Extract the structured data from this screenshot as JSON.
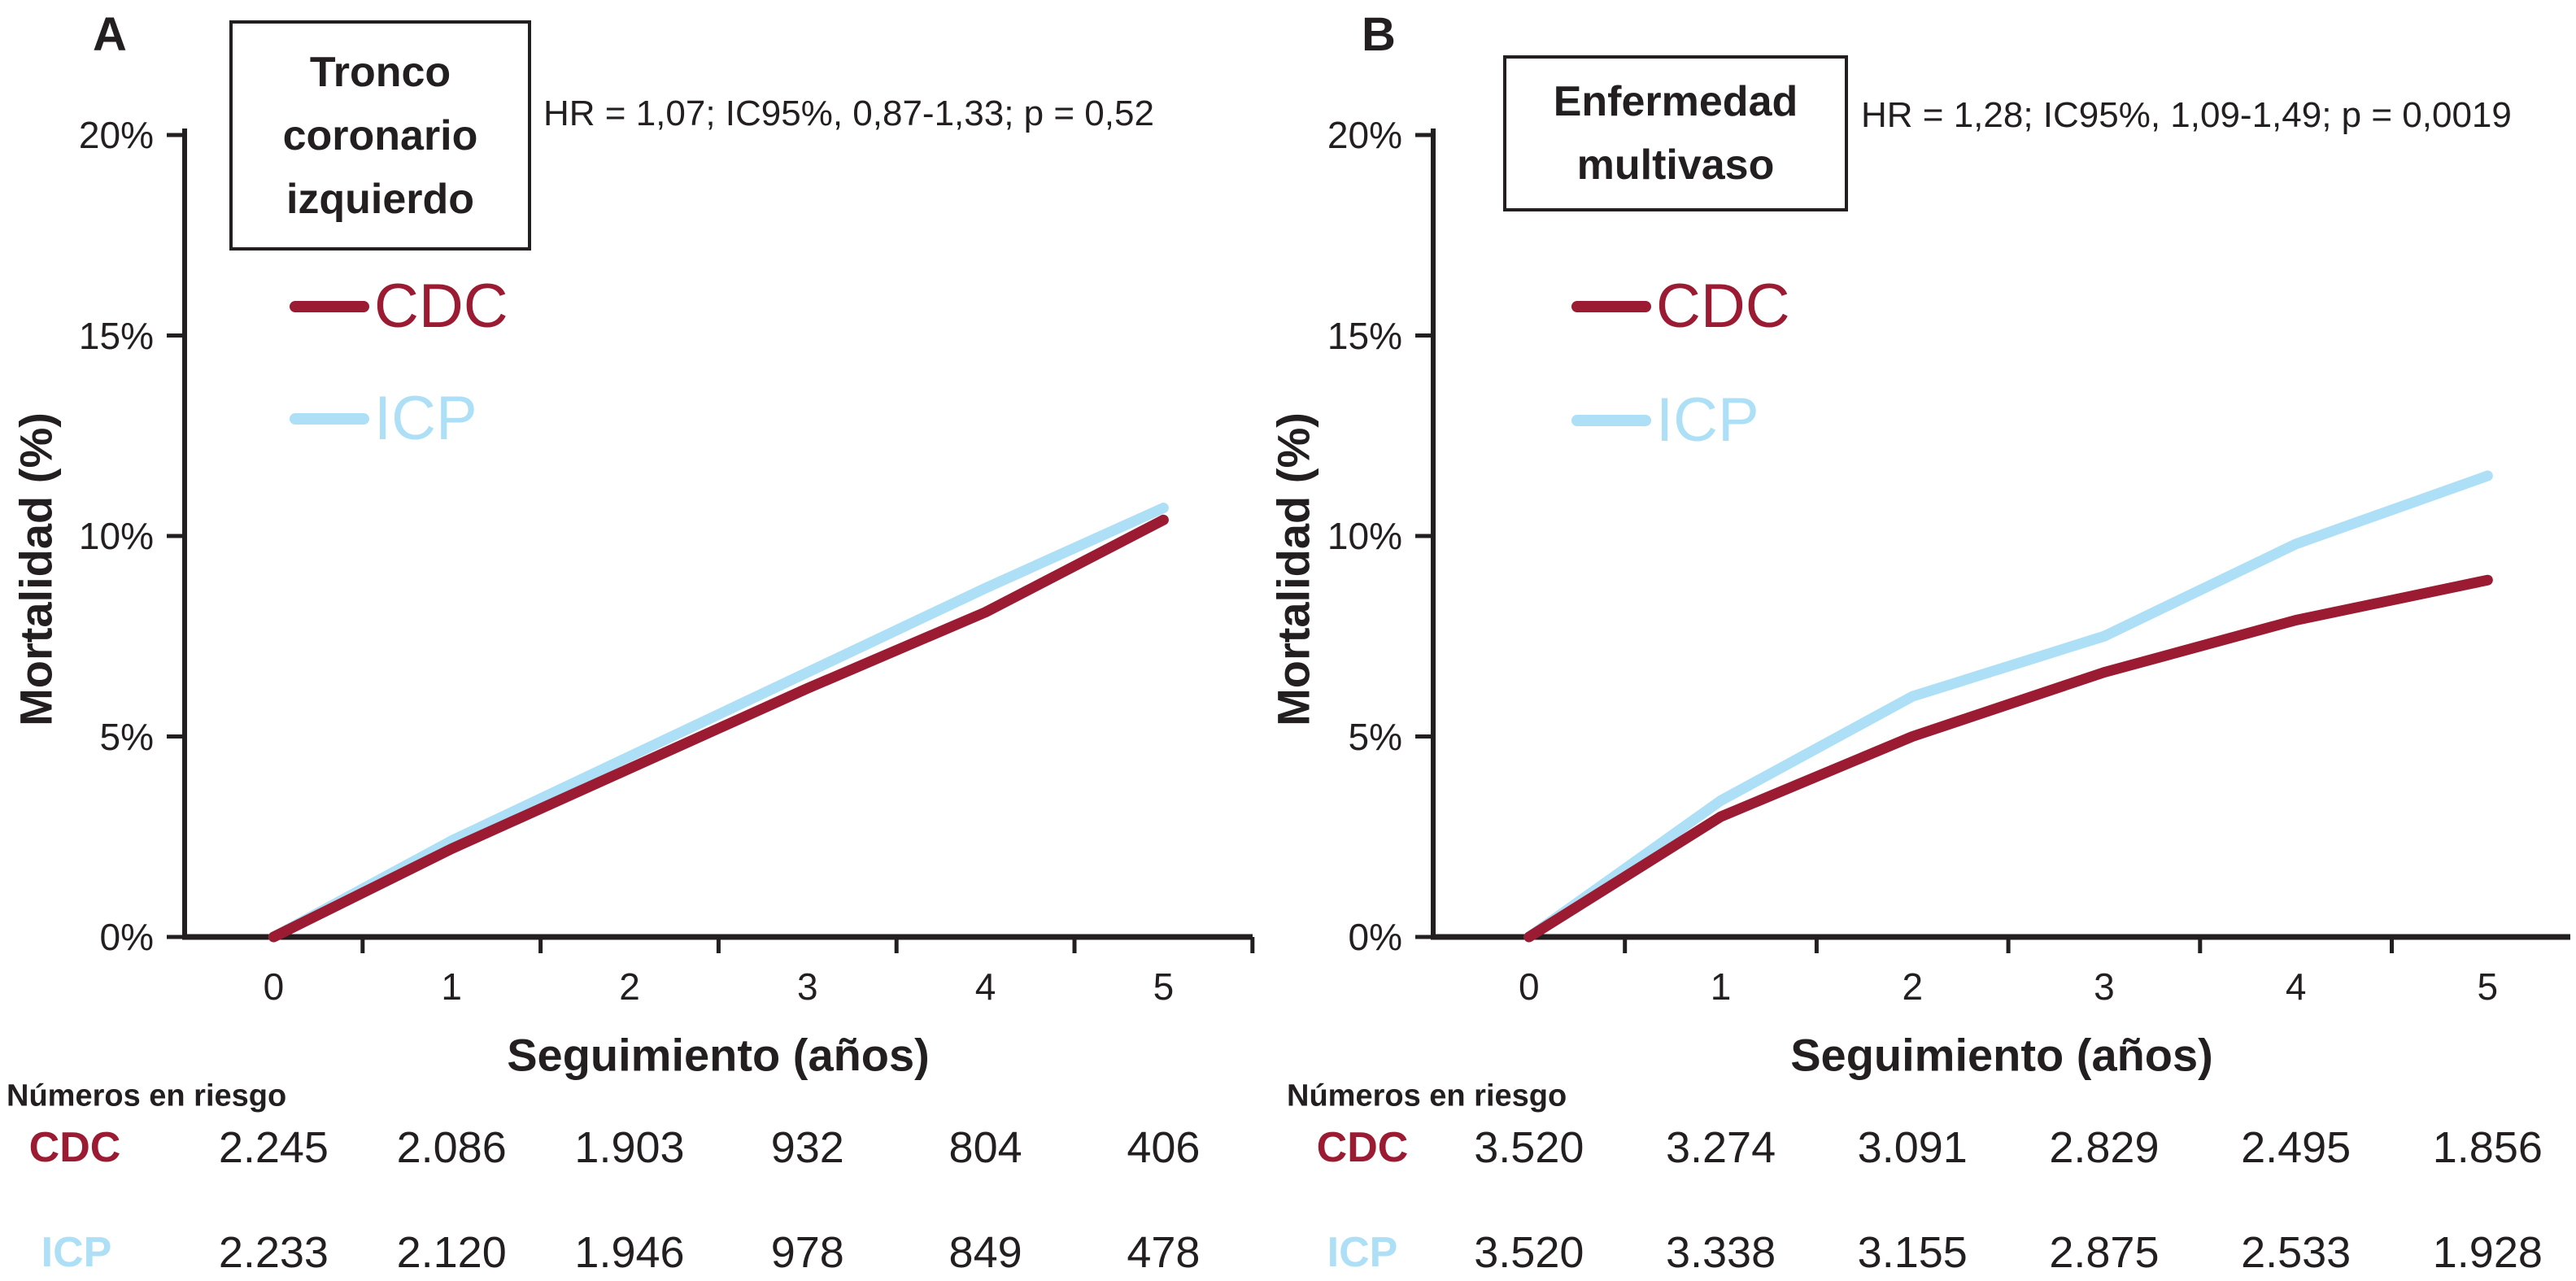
{
  "chart_data": [
    {
      "type": "line",
      "panel_label": "A",
      "title": "Tronco coronario izquierdo",
      "title_lines": [
        "Tronco",
        "coronario",
        "izquierdo"
      ],
      "annotation": "HR = 1,07; IC95%, 0,87-1,33; p = 0,52",
      "xlabel": "Seguimiento (años)",
      "ylabel": "Mortalidad (%)",
      "x": [
        0,
        1,
        2,
        3,
        4,
        5
      ],
      "x_tick_labels": [
        "0",
        "1",
        "2",
        "3",
        "4",
        "5"
      ],
      "y_tick_labels": [
        "0%",
        "5%",
        "10%",
        "15%",
        "20%"
      ],
      "ylim": [
        0,
        20
      ],
      "grid": "off",
      "legend_position": "upper-left-inside",
      "series": [
        {
          "name": "CDC",
          "color": "#9B1B33",
          "values": [
            0,
            2.2,
            4.2,
            6.2,
            8.1,
            10.4
          ]
        },
        {
          "name": "ICP",
          "color": "#ADE0F6",
          "values": [
            0,
            2.4,
            4.5,
            6.6,
            8.7,
            10.7
          ]
        }
      ],
      "numbers_at_risk": {
        "heading": "Números en riesgo",
        "rows": [
          {
            "label": "CDC",
            "color": "#9B1B33",
            "values": [
              "2.245",
              "2.086",
              "1.903",
              "932",
              "804",
              "406"
            ]
          },
          {
            "label": "ICP",
            "color": "#ADE0F6",
            "values": [
              "2.233",
              "2.120",
              "1.946",
              "978",
              "849",
              "478"
            ]
          }
        ]
      }
    },
    {
      "type": "line",
      "panel_label": "B",
      "title": "Enfermedad multivaso",
      "title_lines": [
        "Enfermedad",
        "multivaso"
      ],
      "annotation": "HR = 1,28; IC95%, 1,09-1,49; p = 0,0019",
      "xlabel": "Seguimiento (años)",
      "ylabel": "Mortalidad (%)",
      "x": [
        0,
        1,
        2,
        3,
        4,
        5
      ],
      "x_tick_labels": [
        "0",
        "1",
        "2",
        "3",
        "4",
        "5"
      ],
      "y_tick_labels": [
        "0%",
        "5%",
        "10%",
        "15%",
        "20%"
      ],
      "ylim": [
        0,
        20
      ],
      "grid": "off",
      "legend_position": "upper-left-inside",
      "series": [
        {
          "name": "CDC",
          "color": "#9B1B33",
          "values": [
            0,
            3.0,
            5.0,
            6.6,
            7.9,
            8.9
          ]
        },
        {
          "name": "ICP",
          "color": "#ADE0F6",
          "values": [
            0,
            3.4,
            6.0,
            7.5,
            9.8,
            11.5
          ]
        }
      ],
      "numbers_at_risk": {
        "heading": "Números en riesgo",
        "rows": [
          {
            "label": "CDC",
            "color": "#9B1B33",
            "values": [
              "3.520",
              "3.274",
              "3.091",
              "2.829",
              "2.495",
              "1.856"
            ]
          },
          {
            "label": "ICP",
            "color": "#ADE0F6",
            "values": [
              "3.520",
              "3.338",
              "3.155",
              "2.875",
              "2.533",
              "1.928"
            ]
          }
        ]
      }
    }
  ],
  "colors": {
    "cdc": "#9B1B33",
    "icp": "#ADE0F6",
    "axis": "#231f20",
    "background": "#ffffff"
  }
}
